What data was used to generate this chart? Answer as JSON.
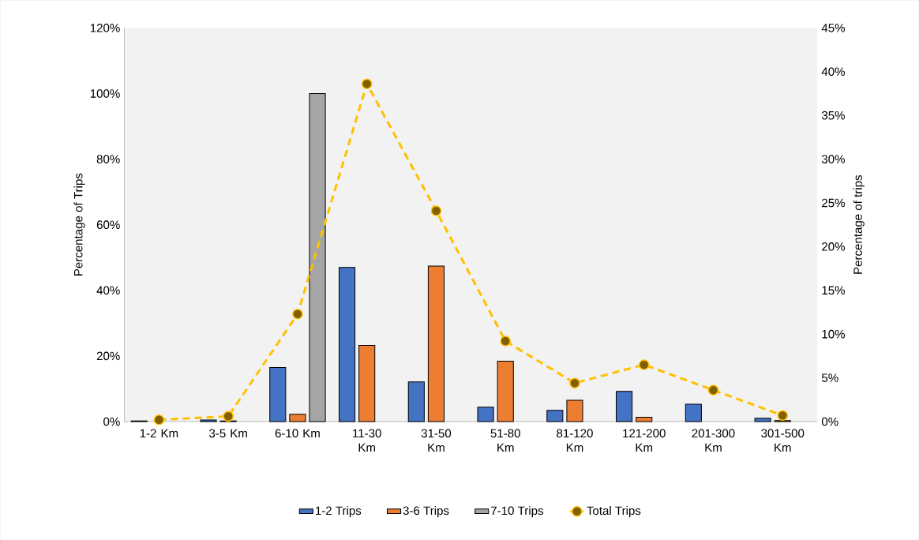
{
  "chart_data": {
    "type": "bar",
    "categories": [
      "1-2 Km",
      "3-5 Km",
      "6-10 Km",
      "11-30 Km",
      "31-50 Km",
      "51-80 Km",
      "81-120 Km",
      "121-200 Km",
      "201-300 Km",
      "301-500 Km"
    ],
    "series": [
      {
        "name": "1-2 Trips",
        "color": "#4472c4",
        "values": [
          0.2,
          0.5,
          16.5,
          47,
          12.1,
          4.4,
          3.4,
          9.2,
          5.3,
          1.0
        ]
      },
      {
        "name": "3-6 Trips",
        "color": "#ed7d31",
        "values": [
          null,
          0.2,
          2.2,
          23.2,
          47.4,
          18.4,
          6.5,
          1.3,
          null,
          0.3
        ]
      },
      {
        "name": "7-10 Trips",
        "color": "#a5a5a5",
        "values": [
          null,
          null,
          100,
          null,
          null,
          null,
          null,
          null,
          null,
          null
        ]
      },
      {
        "name": "Total Trips",
        "type": "line",
        "axis": "y2",
        "color": "#ffc000",
        "line_style": "dashed",
        "marker": "circle",
        "values": [
          0.2,
          0.6,
          12.3,
          38.6,
          24.1,
          9.2,
          4.4,
          6.5,
          3.6,
          0.7
        ]
      }
    ],
    "ylabel": "Percentage of Trips",
    "y2label": "Percentage of trips",
    "ylim": [
      0,
      120
    ],
    "yticks": [
      {
        "value": 0,
        "label": "0%"
      },
      {
        "value": 20,
        "label": "20%"
      },
      {
        "value": 40,
        "label": "40%"
      },
      {
        "value": 60,
        "label": "60%"
      },
      {
        "value": 80,
        "label": "80%"
      },
      {
        "value": 100,
        "label": "100%"
      },
      {
        "value": 120,
        "label": "120%"
      }
    ],
    "y2lim": [
      0,
      45
    ],
    "y2ticks": [
      {
        "value": 0,
        "label": "0%"
      },
      {
        "value": 5,
        "label": "5%"
      },
      {
        "value": 10,
        "label": "10%"
      },
      {
        "value": 15,
        "label": "15%"
      },
      {
        "value": 20,
        "label": "20%"
      },
      {
        "value": 25,
        "label": "25%"
      },
      {
        "value": 30,
        "label": "30%"
      },
      {
        "value": 35,
        "label": "35%"
      },
      {
        "value": 40,
        "label": "40%"
      },
      {
        "value": 45,
        "label": "45%"
      }
    ],
    "legend": "bottom"
  }
}
